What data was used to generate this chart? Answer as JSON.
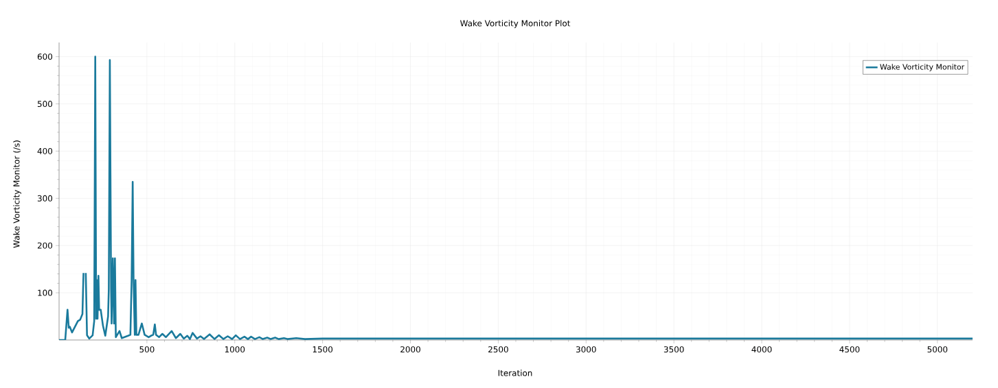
{
  "chart_data": {
    "type": "line",
    "title": "Wake Vorticity Monitor Plot",
    "xlabel": "Iteration",
    "ylabel": "Wake Vorticity Monitor (/s)",
    "x": [
      0,
      35,
      48,
      55,
      61,
      74,
      107,
      120,
      133,
      139,
      143,
      148,
      152,
      159,
      172,
      191,
      200,
      206,
      211,
      215,
      219,
      224,
      228,
      237,
      250,
      263,
      279,
      283,
      289,
      296,
      299,
      306,
      313,
      318,
      323,
      344,
      357,
      393,
      406,
      413,
      419,
      424,
      431,
      435,
      440,
      452,
      471,
      487,
      510,
      523,
      536,
      545,
      552,
      569,
      588,
      608,
      641,
      665,
      690,
      710,
      730,
      745,
      760,
      785,
      805,
      825,
      857,
      885,
      910,
      935,
      960,
      985,
      1006,
      1030,
      1055,
      1075,
      1093,
      1115,
      1140,
      1160,
      1185,
      1205,
      1230,
      1250,
      1280,
      1300,
      1350,
      1400,
      1500,
      1700,
      2000,
      3000,
      4000,
      5200
    ],
    "series": [
      {
        "name": "Wake Vorticity Monitor",
        "color": "#1a7a9c",
        "values": [
          0,
          0,
          64,
          26,
          28,
          16,
          40,
          43,
          55,
          142,
          null,
          null,
          142,
          10,
          3,
          10,
          40,
          600,
          45,
          127,
          45,
          136,
          64,
          64,
          30,
          9,
          50,
          108,
          593,
          108,
          35,
          173,
          35,
          173,
          6,
          19,
          4,
          9,
          11,
          127,
          335,
          127,
          11,
          127,
          11,
          11,
          35,
          11,
          6,
          9,
          11,
          33,
          11,
          6,
          13,
          6,
          19,
          4,
          13,
          3,
          9,
          2,
          15,
          3,
          8,
          2,
          12,
          2,
          10,
          2,
          8,
          2,
          10,
          2,
          7,
          2,
          7,
          2,
          6,
          2,
          5,
          2,
          5,
          2,
          4,
          2,
          4,
          2,
          3,
          3,
          3,
          3,
          3,
          3
        ]
      }
    ],
    "xlim": [
      0,
      5200
    ],
    "ylim": [
      0,
      630
    ],
    "xticks": [
      500,
      1000,
      1500,
      2000,
      2500,
      3000,
      3500,
      4000,
      4500,
      5000
    ],
    "yticks": [
      100,
      200,
      300,
      400,
      500,
      600
    ],
    "grid": true,
    "legend": "top right"
  }
}
